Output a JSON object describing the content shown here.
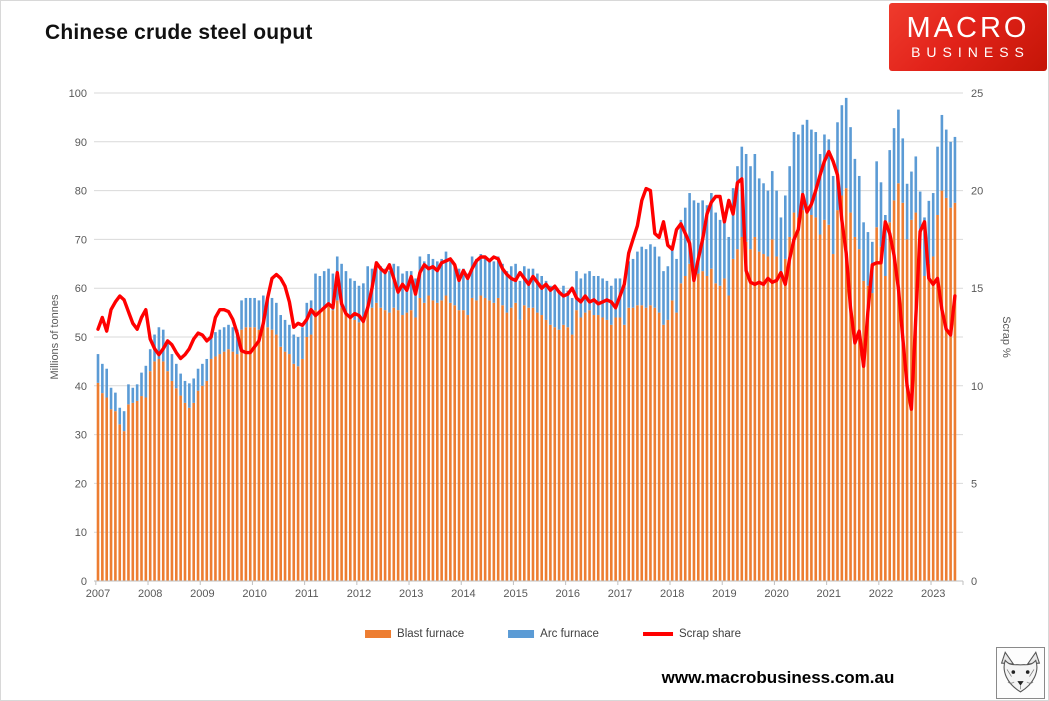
{
  "page": {
    "title": "Chinese crude steel ouput"
  },
  "logo": {
    "line1": "MACRO",
    "line2": "BUSINESS",
    "bg_color": "#e2231a",
    "text_color": "#ffffff"
  },
  "footer": {
    "website": "www.macrobusiness.com.au",
    "fox_logo": "fox-sketch"
  },
  "chart_data": {
    "type": "bar+line",
    "title": "Chinese crude steel ouput",
    "grid": true,
    "legend_position": "bottom",
    "colors": {
      "blast_furnace": "#ED7D31",
      "arc_furnace": "#5B9BD5",
      "scrap_share": "#FF0000",
      "gridline": "#D9D9D9",
      "axis_text": "#595959",
      "axis_line": "#BFBFBF"
    },
    "left_axis": {
      "label": "Millions of tonnes",
      "min": 0,
      "max": 100,
      "step": 10
    },
    "right_axis": {
      "label": "Scrap %",
      "min": 0,
      "max": 25,
      "step": 5
    },
    "x_axis": {
      "start_month": "2007-01",
      "end_month": "2023-06",
      "years": [
        "2007",
        "2008",
        "2009",
        "2010",
        "2011",
        "2012",
        "2013",
        "2014",
        "2015",
        "2016",
        "2017",
        "2018",
        "2019",
        "2020",
        "2021",
        "2022",
        "2023"
      ]
    },
    "legend": [
      {
        "label": "Blast furnace",
        "type": "bar",
        "color": "#ED7D31"
      },
      {
        "label": "Arc furnace",
        "type": "bar",
        "color": "#5B9BD5"
      },
      {
        "label": "Scrap share",
        "type": "line",
        "color": "#FF0000"
      }
    ],
    "series": {
      "blast_furnace": [
        40.6,
        38.5,
        37.6,
        35.2,
        34.8,
        32.1,
        30.7,
        36.2,
        36.5,
        36.9,
        37.9,
        37.6,
        43,
        45,
        45.5,
        45,
        43,
        41,
        39.5,
        38,
        36.5,
        35.5,
        36.5,
        39,
        40,
        41,
        45.5,
        46,
        46.5,
        47,
        47.5,
        47,
        46.5,
        51.5,
        52,
        52,
        52,
        51.5,
        52.5,
        52,
        51.5,
        50.5,
        48,
        47,
        46.5,
        44.5,
        44,
        45.5,
        50,
        50.5,
        55.5,
        55,
        56,
        56.5,
        55.5,
        57.5,
        56,
        55,
        54,
        53.5,
        53,
        53.5,
        56.5,
        56,
        57,
        56,
        55.5,
        55,
        56,
        55.5,
        54.5,
        55,
        55.5,
        54,
        58,
        57,
        58.5,
        57.5,
        57,
        57.5,
        58.5,
        57,
        56.5,
        55.5,
        55.5,
        54.5,
        58,
        57.5,
        58.5,
        58,
        57.5,
        57,
        58,
        56.5,
        55,
        56,
        57,
        53.5,
        56.5,
        56,
        56,
        55,
        54.5,
        53.5,
        52.5,
        52,
        51.5,
        52.5,
        52,
        50.5,
        55.5,
        54,
        55,
        55.5,
        54.5,
        54.5,
        54,
        53.5,
        52.5,
        54,
        54,
        52.5,
        56,
        56,
        56.5,
        56.5,
        56,
        56.5,
        56,
        55,
        52.5,
        53.5,
        57.5,
        55,
        61,
        62.5,
        65,
        63.5,
        63,
        63.5,
        62.5,
        64,
        61,
        60.5,
        62,
        58.5,
        66,
        68,
        70.5,
        69.5,
        68,
        70.5,
        67.5,
        67,
        66.5,
        70,
        66.5,
        62,
        66,
        70.5,
        75.5,
        74.5,
        76,
        77,
        75,
        74.5,
        71,
        74,
        73,
        67,
        76,
        79,
        80.5,
        75.5,
        70.5,
        68,
        61.5,
        60.5,
        59,
        72.5,
        68.5,
        62.5,
        73.5,
        78,
        81.5,
        77.5,
        70,
        74,
        75.5,
        68,
        62.5,
        65,
        66.5,
        75,
        80,
        78.5,
        76.5,
        77.5
      ],
      "arc_furnace": [
        5.9,
        6,
        5.9,
        4.4,
        3.8,
        3.4,
        4.1,
        4.1,
        3.1,
        3.4,
        4.8,
        6.5,
        4.5,
        5.5,
        6.5,
        6.5,
        6,
        5.5,
        5,
        4.5,
        4.5,
        5,
        5,
        4.5,
        4.5,
        4.5,
        5,
        5,
        5,
        5,
        5,
        5,
        5,
        6,
        6,
        6,
        6,
        6,
        6,
        6,
        6.5,
        6.5,
        6.5,
        6.5,
        6,
        6,
        6,
        6.5,
        7,
        7,
        7.5,
        7.5,
        7.5,
        7.5,
        7.5,
        9,
        9,
        8.5,
        8,
        8,
        7.5,
        7.5,
        8,
        8,
        8.5,
        8.5,
        8.5,
        8.5,
        9,
        9,
        8.5,
        8.5,
        8,
        8,
        8.5,
        8.5,
        8.5,
        8.5,
        8.5,
        8.5,
        9,
        8.5,
        8.5,
        8.5,
        8.5,
        8.5,
        8.5,
        8.5,
        8.5,
        8.5,
        8.5,
        8.5,
        8.5,
        8.5,
        8.5,
        8.5,
        8,
        8,
        8,
        8,
        8,
        8,
        8,
        8,
        8,
        8,
        8,
        8,
        7.5,
        7.5,
        8,
        8,
        8,
        8,
        8,
        8,
        8,
        8,
        8,
        8,
        8,
        8,
        9.5,
        10,
        11,
        12,
        12,
        12.5,
        12.5,
        11.5,
        11,
        11,
        11,
        11,
        13,
        14,
        14.5,
        14.5,
        14.5,
        14.5,
        14.5,
        15.5,
        14.5,
        13.5,
        13,
        12,
        14.5,
        17,
        18.5,
        18,
        17,
        17,
        15,
        14.5,
        13.5,
        14,
        13.5,
        12.5,
        13,
        14.5,
        16.5,
        17,
        17.5,
        17.5,
        17.5,
        17.5,
        16.5,
        17.5,
        17.5,
        16,
        18,
        18.5,
        18.5,
        17.5,
        16,
        15,
        12,
        11,
        10.5,
        13.5,
        13.2,
        12.5,
        14.8,
        14.8,
        15.1,
        13.2,
        11.4,
        9.9,
        11.5,
        11.8,
        12,
        12.9,
        13,
        14,
        15.5,
        14,
        13.5,
        13.5
      ],
      "scrap_share": [
        12.9,
        13.5,
        12.8,
        13.9,
        14.3,
        14.6,
        14.4,
        13.8,
        13.2,
        12.9,
        13.5,
        13.9,
        12.4,
        11.9,
        11.6,
        11.9,
        12.3,
        12.1,
        11.7,
        11.4,
        11.6,
        11.9,
        12.4,
        12.7,
        12.6,
        12.3,
        12.5,
        13.5,
        13.9,
        13.9,
        13.8,
        13.4,
        12.7,
        11.8,
        11.7,
        11.7,
        12,
        12.3,
        13.2,
        14.5,
        15.5,
        15.7,
        15.5,
        15.1,
        14.3,
        13,
        13.2,
        13.1,
        13.4,
        13.9,
        13.6,
        13.8,
        14,
        14.2,
        14,
        15.8,
        14.2,
        13.7,
        13.5,
        13.7,
        13.6,
        13.3,
        14,
        15,
        16.3,
        16,
        15.8,
        16.2,
        15.5,
        14.8,
        15.2,
        14.9,
        15.6,
        14.7,
        15.8,
        16.2,
        16,
        16.1,
        15.9,
        16.3,
        16.4,
        16.5,
        16.2,
        15.4,
        15.9,
        15.5,
        16,
        16.4,
        16.6,
        16.6,
        16.4,
        16.6,
        16.5,
        16,
        15.7,
        15.5,
        15.4,
        15.8,
        15.5,
        15.2,
        15.6,
        15.3,
        15,
        15.2,
        14.9,
        15.1,
        14.8,
        14.6,
        14.7,
        15,
        14.5,
        14.3,
        14.6,
        14.3,
        14.4,
        14.2,
        14.3,
        14.4,
        14.3,
        14,
        14.6,
        15.2,
        16.8,
        17.5,
        18.2,
        19.5,
        20.1,
        20,
        17.8,
        17.6,
        18.4,
        17.2,
        17,
        18,
        18.3,
        17.8,
        17.3,
        15.4,
        16.5,
        17.5,
        18.8,
        19.4,
        19.7,
        19.7,
        18.4,
        19.5,
        18.8,
        20.4,
        20.6,
        15.9,
        15.3,
        15.2,
        15.3,
        15.2,
        15.5,
        15.3,
        15.4,
        15.8,
        15.2,
        16.5,
        17.5,
        18,
        19.8,
        18.9,
        19.3,
        20,
        20.8,
        21.5,
        22,
        21.5,
        20.8,
        18.5,
        16.8,
        14,
        12.2,
        12.8,
        11,
        13.8,
        16.2,
        16.3,
        16.3,
        18.4,
        17.8,
        16.7,
        15,
        12.5,
        10,
        8.8,
        13.5,
        17.9,
        18.4,
        15.5,
        15.2,
        15.5,
        13.9,
        12.9,
        12.6,
        14.6
      ]
    }
  }
}
